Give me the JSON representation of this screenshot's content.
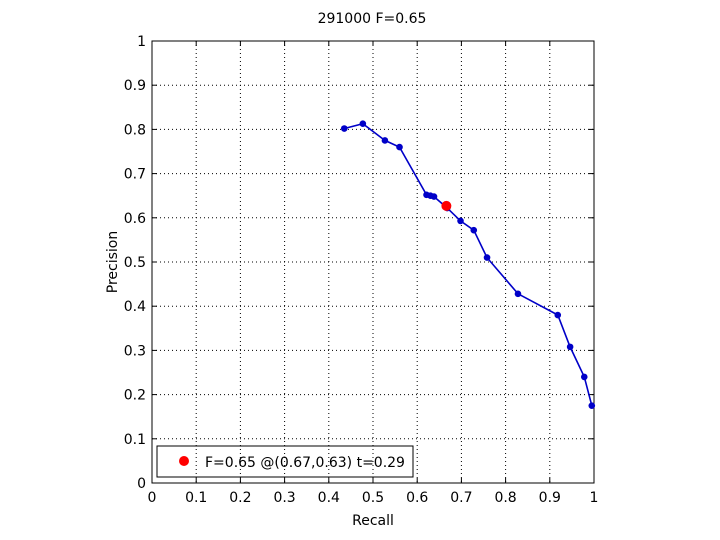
{
  "chart_data": {
    "type": "line",
    "title": "291000 F=0.65",
    "xlabel": "Recall",
    "ylabel": "Precision",
    "xlim": [
      0,
      1
    ],
    "ylim": [
      0,
      1
    ],
    "grid": true,
    "xticks": [
      "0",
      "0.1",
      "0.2",
      "0.3",
      "0.4",
      "0.5",
      "0.6",
      "0.7",
      "0.8",
      "0.9",
      "1"
    ],
    "yticks": [
      "0",
      "0.1",
      "0.2",
      "0.3",
      "0.4",
      "0.5",
      "0.6",
      "0.7",
      "0.8",
      "0.9",
      "1"
    ],
    "series": [
      {
        "color": "#0000c8",
        "x": [
          0.435,
          0.477,
          0.527,
          0.56,
          0.621,
          0.63,
          0.638,
          0.668,
          0.698,
          0.728,
          0.758,
          0.828,
          0.918,
          0.946,
          0.978,
          0.995
        ],
        "y": [
          0.802,
          0.813,
          0.775,
          0.76,
          0.652,
          0.65,
          0.648,
          0.622,
          0.593,
          0.572,
          0.51,
          0.428,
          0.38,
          0.308,
          0.24,
          0.175
        ]
      }
    ],
    "best_point": {
      "color": "#ff0000",
      "x": 0.666,
      "y": 0.627
    },
    "legend": {
      "position": "bottom-left",
      "label": "F=0.65 @(0.67,0.63) t=0.29"
    }
  }
}
